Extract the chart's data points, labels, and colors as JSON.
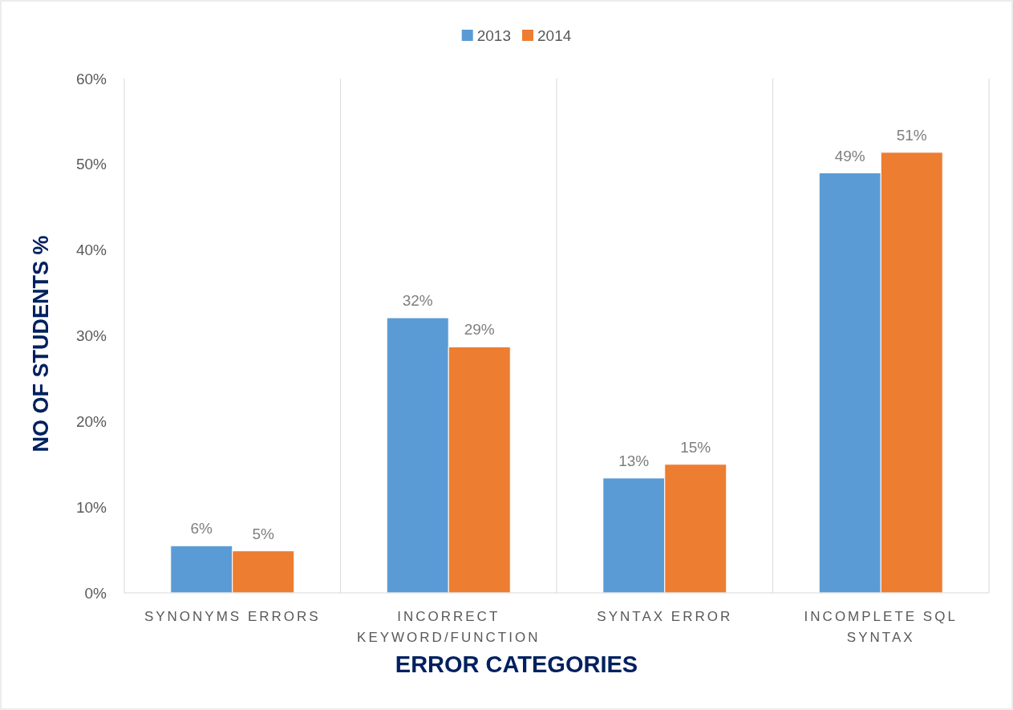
{
  "chart_data": {
    "type": "bar",
    "xlabel": "ERROR CATEGORIES",
    "ylabel": "NO OF STUDENTS %",
    "categories": [
      "SYNONYMS ERRORS",
      "INCORRECT KEYWORD/FUNCTION",
      "SYNTAX ERROR",
      "INCOMPLETE SQL SYNTAX"
    ],
    "series": [
      {
        "name": "2013",
        "color": "#5b9bd5",
        "values": [
          5.5,
          32.1,
          13.4,
          49.0
        ],
        "value_labels": [
          "6%",
          "32%",
          "13%",
          "49%"
        ]
      },
      {
        "name": "2014",
        "color": "#ed7d31",
        "values": [
          4.9,
          28.7,
          15.0,
          51.4
        ],
        "value_labels": [
          "5%",
          "29%",
          "15%",
          "51%"
        ]
      }
    ],
    "ylim": [
      0,
      60
    ],
    "yticks": [
      {
        "value": 0,
        "label": "0%"
      },
      {
        "value": 10,
        "label": "10%"
      },
      {
        "value": 20,
        "label": "20%"
      },
      {
        "value": 30,
        "label": "30%"
      },
      {
        "value": 40,
        "label": "40%"
      },
      {
        "value": 50,
        "label": "50%"
      },
      {
        "value": 60,
        "label": "60%"
      }
    ],
    "grid": "x",
    "legend": "top"
  }
}
